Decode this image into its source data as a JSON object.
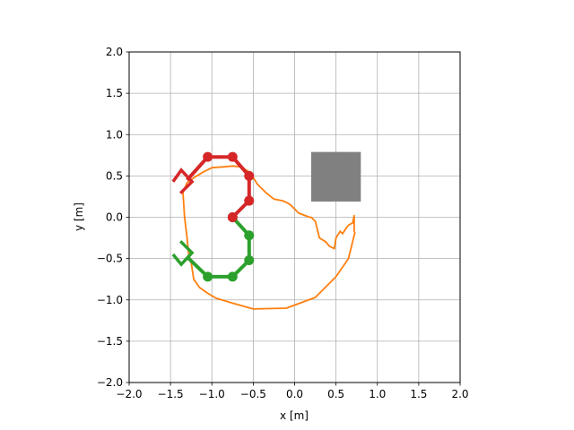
{
  "chart_data": {
    "type": "line",
    "title": "",
    "xlabel": "x [m]",
    "ylabel": "y [m]",
    "xlim": [
      -2.0,
      2.0
    ],
    "ylim": [
      -2.0,
      2.0
    ],
    "xticks": [
      -2.0,
      -1.5,
      -1.0,
      -0.5,
      0.0,
      0.5,
      1.0,
      1.5,
      2.0
    ],
    "yticks": [
      -2.0,
      -1.5,
      -1.0,
      -0.5,
      0.0,
      0.5,
      1.0,
      1.5,
      2.0
    ],
    "xtick_labels": [
      "−2.0",
      "−1.5",
      "−1.0",
      "−0.5",
      "0.0",
      "0.5",
      "1.0",
      "1.5",
      "2.0"
    ],
    "ytick_labels": [
      "−2.0",
      "−1.5",
      "−1.0",
      "−0.5",
      "0.0",
      "0.5",
      "1.0",
      "1.5",
      "2.0"
    ],
    "grid": true,
    "aspect": "equal",
    "obstacle": {
      "x_range": [
        0.2,
        0.8
      ],
      "y_range": [
        0.19,
        0.79
      ],
      "color": "#808080"
    },
    "series": [
      {
        "role": "trajectory",
        "color": "#ff7f0e",
        "x": [
          0.72,
          0.72,
          0.7,
          0.66,
          0.63,
          0.58,
          0.55,
          0.5,
          0.48,
          0.42,
          0.38,
          0.3,
          0.25,
          0.2,
          0.18,
          0.05,
          -0.05,
          -0.1,
          -0.15,
          -0.25,
          -0.35,
          -0.45,
          -0.5,
          -0.55,
          -0.65,
          -0.75,
          -0.85,
          -1.0,
          -1.1,
          -1.2,
          -1.3,
          -1.35,
          -1.33,
          -1.3,
          -1.28,
          -1.25,
          -1.22,
          -1.15,
          -1.05,
          -0.95,
          -0.75,
          -0.5,
          -0.1,
          0.25,
          0.5,
          0.65,
          0.7,
          0.73
        ],
        "y": [
          -0.18,
          0.02,
          -0.07,
          -0.09,
          -0.12,
          -0.2,
          -0.17,
          -0.25,
          -0.38,
          -0.35,
          -0.3,
          -0.25,
          -0.05,
          0.0,
          0.0,
          0.05,
          0.15,
          0.18,
          0.2,
          0.22,
          0.3,
          0.4,
          0.48,
          0.55,
          0.61,
          0.62,
          0.61,
          0.6,
          0.55,
          0.49,
          0.42,
          0.3,
          0.0,
          -0.25,
          -0.45,
          -0.55,
          -0.75,
          -0.85,
          -0.92,
          -0.98,
          -1.04,
          -1.11,
          -1.1,
          -0.97,
          -0.72,
          -0.5,
          -0.3,
          -0.18
        ]
      },
      {
        "role": "robot-arm-green",
        "color": "#2ca02c",
        "marker_x": [
          -0.75,
          -0.55,
          -0.55,
          -0.75,
          -1.05
        ],
        "marker_y": [
          0.0,
          -0.22,
          -0.52,
          -0.72,
          -0.72
        ],
        "x": [
          -0.75,
          -0.55,
          -0.55,
          -0.75,
          -1.05,
          -1.3
        ],
        "y": [
          0.0,
          -0.22,
          -0.52,
          -0.72,
          -0.72,
          -0.48
        ]
      },
      {
        "role": "robot-arm-red",
        "color": "#d62728",
        "marker_x": [
          -0.75,
          -0.55,
          -0.55,
          -0.75,
          -1.05
        ],
        "marker_y": [
          0.0,
          0.2,
          0.5,
          0.73,
          0.73
        ],
        "x": [
          -0.75,
          -0.55,
          -0.55,
          -0.75,
          -1.05,
          -1.3
        ],
        "y": [
          0.0,
          0.2,
          0.5,
          0.73,
          0.73,
          0.45
        ]
      }
    ],
    "grippers": [
      {
        "color": "#2ca02c",
        "x": [
          -1.47,
          -1.37,
          -1.24,
          -1.38
        ],
        "y": [
          -0.45,
          -0.57,
          -0.43,
          -0.29
        ]
      },
      {
        "color": "#d62728",
        "x": [
          -1.47,
          -1.37,
          -1.24,
          -1.38
        ],
        "y": [
          0.43,
          0.57,
          0.43,
          0.29
        ]
      }
    ]
  }
}
